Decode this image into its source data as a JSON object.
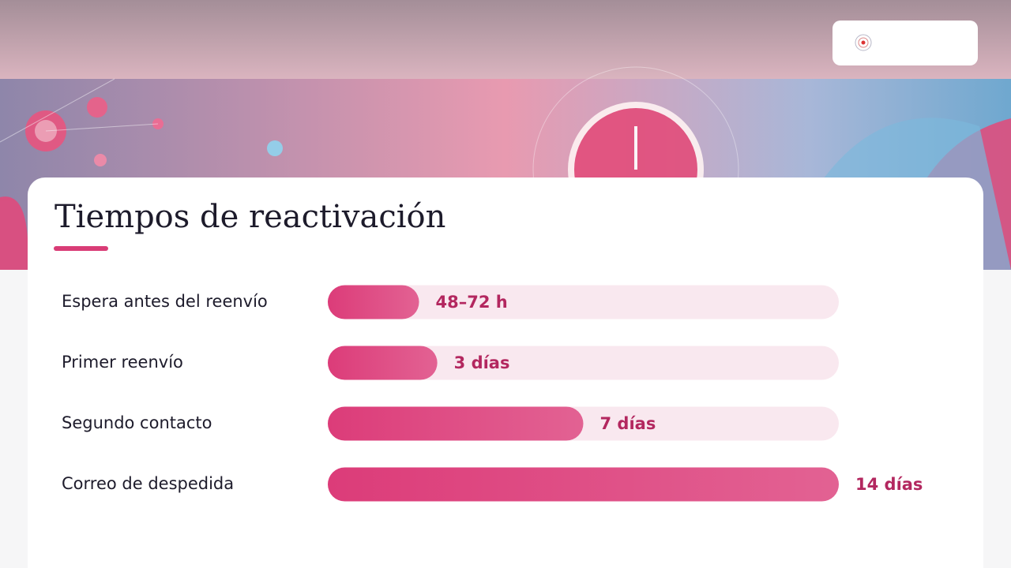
{
  "chart_data": {
    "type": "bar",
    "orientation": "horizontal",
    "title": "Tiempos de reactivación",
    "categories": [
      "Espera antes del reenvío",
      "Primer reenvío",
      "Segundo contacto",
      "Correo de despedida"
    ],
    "values": [
      2.5,
      3,
      7,
      14
    ],
    "value_labels": [
      "48–72 h",
      "3 días",
      "7 días",
      "14 días"
    ],
    "xlim": [
      0,
      14
    ],
    "color": "#dc3c79",
    "track_color": "#f9e8ef"
  }
}
